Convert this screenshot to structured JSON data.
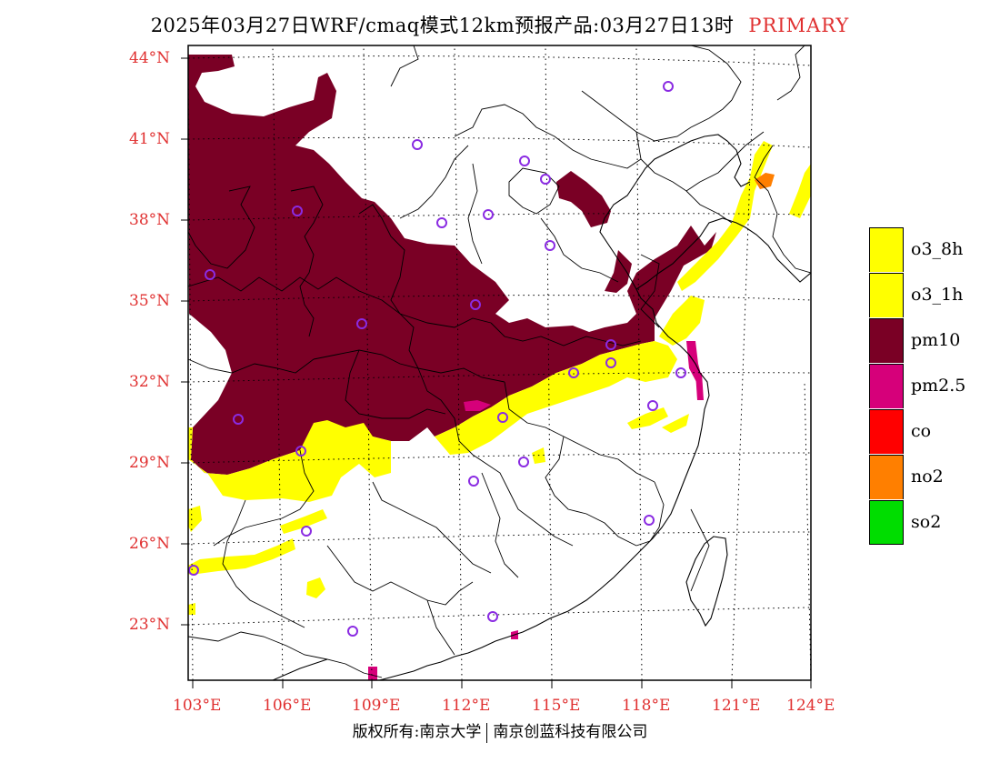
{
  "header": {
    "title": "2025年03月27日WRF/cmaq模式12km预报产品:03月27日13时",
    "tag": "PRIMARY"
  },
  "axes": {
    "lat_labels": [
      "44°N",
      "41°N",
      "38°N",
      "35°N",
      "32°N",
      "29°N",
      "26°N",
      "23°N"
    ],
    "lon_labels": [
      "103°E",
      "106°E",
      "109°E",
      "112°E",
      "115°E",
      "118°E",
      "121°E",
      "124°E"
    ]
  },
  "legend": {
    "items": [
      {
        "label": "o3_8h",
        "color": "#ffff00"
      },
      {
        "label": "o3_1h",
        "color": "#ffff00"
      },
      {
        "label": "pm10",
        "color": "#7a0025"
      },
      {
        "label": "pm2.5",
        "color": "#d6007a"
      },
      {
        "label": "co",
        "color": "#ff0000"
      },
      {
        "label": "no2",
        "color": "#ff7f00"
      },
      {
        "label": "so2",
        "color": "#00dd00"
      }
    ]
  },
  "colors": {
    "pm10": "#7a0025",
    "pm25": "#d6007a",
    "o3": "#ffff00",
    "no2": "#ff7f00",
    "station": "#8a2be2",
    "axis_label": "#e03030"
  },
  "footer": {
    "left": "版权所有:南京大学",
    "right": "南京创蓝科技有限公司"
  }
}
